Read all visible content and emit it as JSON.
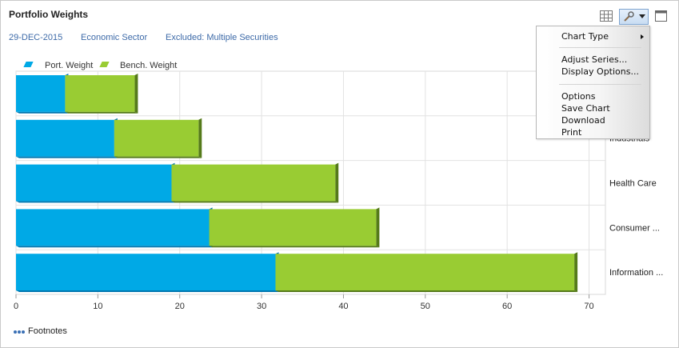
{
  "header": {
    "title": "Portfolio Weights",
    "date": "29-DEC-2015",
    "grouping": "Economic Sector",
    "exclusion": "Excluded: Multiple Securities"
  },
  "toolbar": {
    "grid_icon": "grid-icon",
    "chart_tools_icon": "wrench-icon",
    "dropdown_icon": "chevron-down-icon",
    "maximize_icon": "maximize-icon"
  },
  "menu": {
    "chart_type": "Chart Type",
    "adjust_series": "Adjust Series...",
    "display_options": "Display Options...",
    "options": "Options",
    "save_chart": "Save Chart",
    "download": "Download",
    "print": "Print"
  },
  "footer": {
    "footnotes": "Footnotes"
  },
  "colors": {
    "port": "#00a9e6",
    "port_dark": "#0077b0",
    "bench": "#99cc33",
    "bench_dark": "#557a1a",
    "link": "#3d6aa8"
  },
  "chart_data": {
    "type": "bar",
    "orientation": "horizontal",
    "stacked": true,
    "categories": [
      "",
      "Industrials",
      "Health Care",
      "Consumer ...",
      "Information ..."
    ],
    "series": [
      {
        "name": "Port. Weight",
        "values": [
          6,
          12,
          19,
          23.6,
          31.7
        ]
      },
      {
        "name": "Bench. Weight",
        "values": [
          8.5,
          10.3,
          20,
          20.4,
          36.5
        ]
      }
    ],
    "xlim": [
      0,
      72
    ],
    "xticks": [
      0,
      10,
      20,
      30,
      40,
      50,
      60,
      70
    ],
    "grid": true,
    "legend_position": "top-left"
  }
}
